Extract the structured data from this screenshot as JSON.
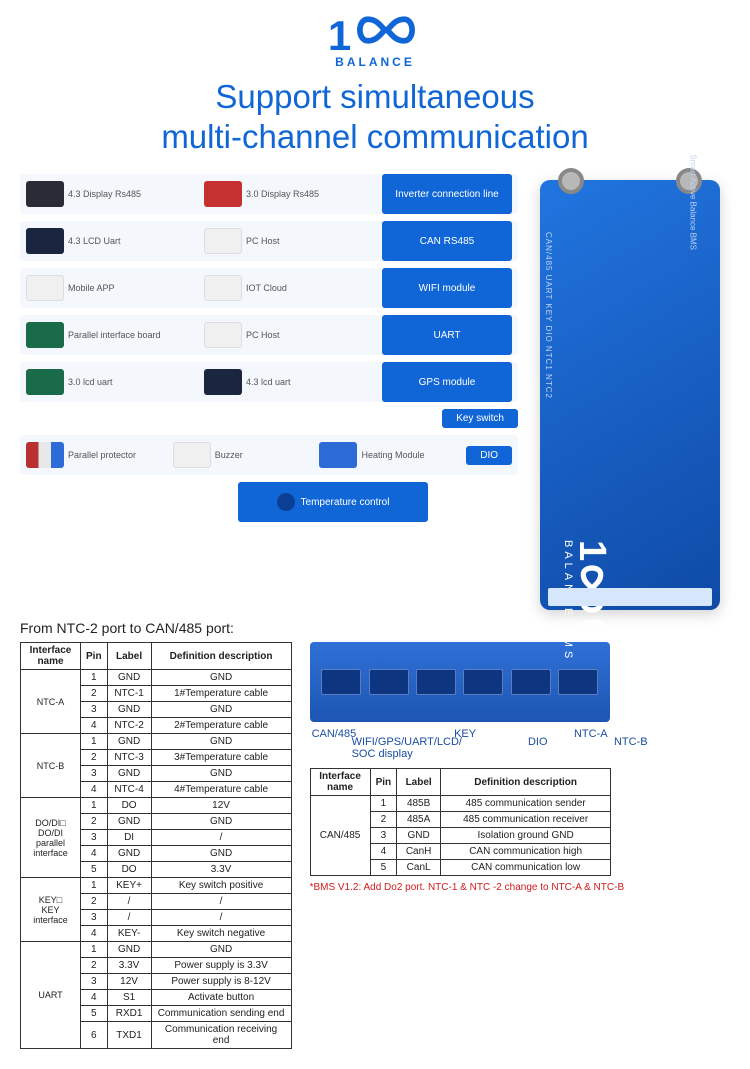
{
  "brand": {
    "logo_text": "1",
    "logo_sub": "BALANCE"
  },
  "title": "Support simultaneous\nmulti-channel communication",
  "rows": [
    {
      "cells": [
        "4.3 Display Rs485",
        "3.0 Display Rs485"
      ],
      "thumbs": [
        "dark",
        "red"
      ],
      "connector": "Inverter connection line"
    },
    {
      "cells": [
        "4.3 LCD Uart",
        "PC Host"
      ],
      "thumbs": [
        "screen",
        "white"
      ],
      "connector": "CAN   RS485"
    },
    {
      "cells": [
        "Mobile APP",
        "IOT Cloud"
      ],
      "thumbs": [
        "white",
        "white"
      ],
      "connector": "WIFI module"
    },
    {
      "cells": [
        "Parallel interface board",
        "PC Host"
      ],
      "thumbs": [
        "pcb",
        "white"
      ],
      "connector": "UART"
    },
    {
      "cells": [
        "3.0 lcd uart",
        "4.3 lcd uart"
      ],
      "thumbs": [
        "pcb",
        "screen"
      ],
      "connector": "GPS module"
    }
  ],
  "midTabs": [
    "Key switch"
  ],
  "bottomRow": {
    "cells": [
      "Parallel protector",
      "Buzzer",
      "Heating Module"
    ],
    "thumbs": [
      "mix",
      "white",
      "blue"
    ],
    "port": "DIO"
  },
  "tempTab": "Temperature control",
  "bms": {
    "brand1": "1∞0",
    "brand2": "BALANCE BMS",
    "side_ports": "CAN/485  UART  KEY  DIO  NTC1 NTC2",
    "label_block": "Smart Active Balance BMS"
  },
  "subhead": "From NTC-2 port to CAN/485 port:",
  "table1": {
    "headers": [
      "Interface name",
      "Pin",
      "Label",
      "Definition description"
    ],
    "groups": [
      {
        "name": "NTC-A",
        "rows": [
          [
            "1",
            "GND",
            "GND"
          ],
          [
            "2",
            "NTC-1",
            "1#Temperature cable"
          ],
          [
            "3",
            "GND",
            "GND"
          ],
          [
            "4",
            "NTC-2",
            "2#Temperature cable"
          ]
        ]
      },
      {
        "name": "NTC-B",
        "rows": [
          [
            "1",
            "GND",
            "GND"
          ],
          [
            "2",
            "NTC-3",
            "3#Temperature cable"
          ],
          [
            "3",
            "GND",
            "GND"
          ],
          [
            "4",
            "NTC-4",
            "4#Temperature cable"
          ]
        ]
      },
      {
        "name": "DO/DI□\nDO/DI\nparallel\ninterface",
        "rows": [
          [
            "1",
            "DO",
            "12V"
          ],
          [
            "2",
            "GND",
            "GND"
          ],
          [
            "3",
            "DI",
            "/"
          ],
          [
            "4",
            "GND",
            "GND"
          ],
          [
            "5",
            "DO",
            "3.3V"
          ]
        ]
      },
      {
        "name": "KEY□\nKEY\ninterface",
        "rows": [
          [
            "1",
            "KEY+",
            "Key switch positive"
          ],
          [
            "2",
            "/",
            "/"
          ],
          [
            "3",
            "/",
            "/"
          ],
          [
            "4",
            "KEY-",
            "Key switch negative"
          ]
        ]
      },
      {
        "name": "UART",
        "rows": [
          [
            "1",
            "GND",
            "GND"
          ],
          [
            "2",
            "3.3V",
            "Power supply is 3.3V"
          ],
          [
            "3",
            "12V",
            "Power supply is 8-12V"
          ],
          [
            "4",
            "S1",
            "Activate button"
          ],
          [
            "5",
            "RXD1",
            "Communication sending end"
          ],
          [
            "6",
            "TXD1",
            "Communication receiving end"
          ]
        ]
      }
    ]
  },
  "portStripLabels1": [
    "CAN/485",
    "KEY",
    "NTC-A"
  ],
  "portStripLabels2": [
    "WIFI/GPS/UART/LCD/ SOC display",
    "DIO",
    "NTC-B"
  ],
  "table2": {
    "headers": [
      "Interface name",
      "Pin",
      "Label",
      "Definition description"
    ],
    "group": {
      "name": "CAN/485",
      "rows": [
        [
          "1",
          "485B",
          "485 communication sender"
        ],
        [
          "2",
          "485A",
          "485 communication receiver"
        ],
        [
          "3",
          "GND",
          "Isolation ground GND"
        ],
        [
          "4",
          "CanH",
          "CAN  communication high"
        ],
        [
          "5",
          "CanL",
          "CAN communication low"
        ]
      ]
    }
  },
  "note": "*BMS V1.2: Add Do2 port. NTC-1 & NTC -2 change to NTC-A & NTC-B"
}
